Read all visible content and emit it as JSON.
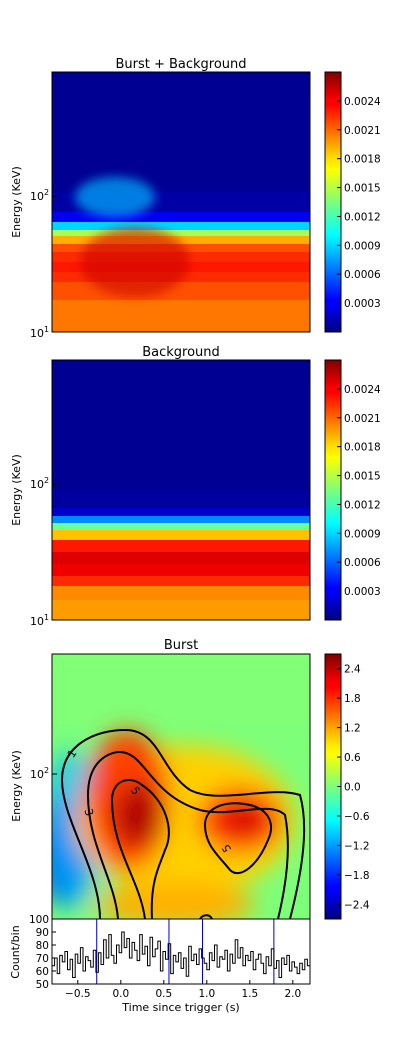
{
  "chart_data": [
    {
      "type": "heatmap",
      "title": "Burst + Background",
      "ylabel": "Energy (KeV)",
      "y_scale": "log",
      "y_ticks": [
        {
          "label": "10",
          "exp": "1",
          "value": 10
        },
        {
          "label": "10",
          "exp": "2",
          "value": 100
        }
      ],
      "colorbar": {
        "ticks": [
          "0.0003",
          "0.0006",
          "0.0009",
          "0.0012",
          "0.0015",
          "0.0018",
          "0.0021",
          "0.0024"
        ],
        "min": 0.0,
        "max": 0.0027
      },
      "bands": [
        {
          "value": 5e-05
        },
        {
          "value": 0.0001
        },
        {
          "value": 0.0003
        },
        {
          "value": 0.0009
        },
        {
          "value": 0.00145
        },
        {
          "value": 0.0019
        },
        {
          "value": 0.00215
        },
        {
          "value": 0.00225
        },
        {
          "value": 0.0023
        },
        {
          "value": 0.00225
        },
        {
          "value": 0.00215
        },
        {
          "value": 0.00205
        }
      ]
    },
    {
      "type": "heatmap",
      "title": "Background",
      "ylabel": "Energy (KeV)",
      "y_scale": "log",
      "y_ticks": [
        {
          "label": "10",
          "exp": "1",
          "value": 10
        },
        {
          "label": "10",
          "exp": "2",
          "value": 100
        }
      ],
      "colorbar": {
        "ticks": [
          "0.0003",
          "0.0006",
          "0.0009",
          "0.0012",
          "0.0015",
          "0.0018",
          "0.0021",
          "0.0024"
        ],
        "min": 0.0,
        "max": 0.0027
      },
      "bands": [
        {
          "value": 5e-05
        },
        {
          "value": 8e-05
        },
        {
          "value": 0.0002
        },
        {
          "value": 0.0007
        },
        {
          "value": 0.0013
        },
        {
          "value": 0.00185
        },
        {
          "value": 0.0023
        },
        {
          "value": 0.00245
        },
        {
          "value": 0.0024
        },
        {
          "value": 0.00225
        },
        {
          "value": 0.002
        },
        {
          "value": 0.00195
        }
      ]
    },
    {
      "type": "heatmap",
      "title": "Burst",
      "ylabel": "Energy (KeV)",
      "y_scale": "log",
      "y_ticks": [
        {
          "label": "10",
          "exp": "2",
          "value": 100
        }
      ],
      "colorbar": {
        "ticks": [
          "-2.4",
          "-1.8",
          "-1.2",
          "-0.6",
          "0.0",
          "0.6",
          "1.2",
          "1.8",
          "2.4"
        ],
        "min": -2.7,
        "max": 2.7
      },
      "contour_labels": [
        "1",
        "3",
        "5",
        "5"
      ],
      "hot_spots": [
        {
          "t": 0.25,
          "E": 60,
          "value": 2.6
        },
        {
          "t": 1.45,
          "E": 50,
          "value": 2.3
        }
      ],
      "cold_spot": {
        "t": -0.7,
        "E": 35,
        "value": -1.5
      }
    },
    {
      "type": "line",
      "ylabel": "Count/bin",
      "xlabel": "Time since trigger (s)",
      "x_ticks": [
        "-0.5",
        "0.0",
        "0.5",
        "1.0",
        "1.5",
        "2.0"
      ],
      "y_ticks": [
        "50",
        "60",
        "70",
        "80",
        "90",
        "100"
      ],
      "xlim": [
        -0.8,
        2.2
      ],
      "ylim": [
        50,
        100
      ],
      "vlines": [
        -0.28,
        0.56,
        0.95,
        1.78
      ],
      "x": [
        -0.8,
        -0.77,
        -0.74,
        -0.71,
        -0.68,
        -0.65,
        -0.62,
        -0.59,
        -0.56,
        -0.53,
        -0.5,
        -0.47,
        -0.44,
        -0.41,
        -0.38,
        -0.35,
        -0.32,
        -0.29,
        -0.26,
        -0.23,
        -0.2,
        -0.17,
        -0.14,
        -0.11,
        -0.08,
        -0.05,
        -0.02,
        0.01,
        0.04,
        0.07,
        0.1,
        0.13,
        0.16,
        0.19,
        0.22,
        0.25,
        0.28,
        0.31,
        0.34,
        0.37,
        0.4,
        0.43,
        0.46,
        0.49,
        0.52,
        0.55,
        0.58,
        0.61,
        0.64,
        0.67,
        0.7,
        0.73,
        0.76,
        0.79,
        0.82,
        0.85,
        0.88,
        0.91,
        0.94,
        0.97,
        1.0,
        1.03,
        1.06,
        1.09,
        1.12,
        1.15,
        1.18,
        1.21,
        1.24,
        1.27,
        1.3,
        1.33,
        1.36,
        1.39,
        1.42,
        1.45,
        1.48,
        1.51,
        1.54,
        1.57,
        1.6,
        1.63,
        1.66,
        1.69,
        1.72,
        1.75,
        1.78,
        1.81,
        1.84,
        1.87,
        1.9,
        1.93,
        1.96,
        1.99,
        2.02,
        2.05,
        2.08,
        2.11,
        2.14,
        2.17
      ],
      "y": [
        64,
        70,
        58,
        72,
        67,
        75,
        61,
        69,
        55,
        73,
        66,
        78,
        60,
        71,
        68,
        63,
        76,
        59,
        74,
        65,
        84,
        70,
        88,
        72,
        66,
        80,
        74,
        90,
        78,
        85,
        70,
        82,
        76,
        68,
        88,
        73,
        79,
        64,
        86,
        71,
        77,
        83,
        60,
        75,
        69,
        81,
        58,
        72,
        67,
        74,
        62,
        70,
        56,
        79,
        68,
        73,
        65,
        77,
        70,
        66,
        61,
        74,
        68,
        80,
        63,
        71,
        69,
        76,
        60,
        73,
        66,
        84,
        70,
        78,
        64,
        72,
        68,
        75,
        61,
        69,
        73,
        66,
        58,
        71,
        64,
        77,
        62,
        68,
        55,
        70,
        65,
        72,
        60,
        67,
        63,
        58,
        66,
        61,
        69,
        64
      ]
    }
  ]
}
